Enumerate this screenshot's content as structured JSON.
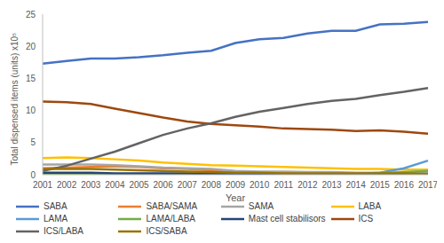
{
  "chart_data": {
    "type": "line",
    "x_label": "Year",
    "y_label": "Total dispensed items (units) x10⁵",
    "categories": [
      "2001",
      "2002",
      "2003",
      "2004",
      "2005",
      "2006",
      "2007",
      "2008",
      "2009",
      "2010",
      "2011",
      "2012",
      "2013",
      "2014",
      "2015",
      "2016",
      "2017"
    ],
    "ylim": [
      0,
      25
    ],
    "yticks": [
      0,
      5,
      10,
      15,
      20,
      25
    ],
    "grid": false,
    "legend": "bottom",
    "series": [
      {
        "name": "SABA",
        "color": "#4472c4",
        "values": [
          17.3,
          17.7,
          18.1,
          18.1,
          18.3,
          18.6,
          19.0,
          19.3,
          20.5,
          21.1,
          21.3,
          22.0,
          22.4,
          22.4,
          23.4,
          23.5,
          23.8
        ]
      },
      {
        "name": "SABA/SAMA",
        "color": "#ed7d31",
        "values": [
          1.0,
          1.1,
          1.2,
          1.3,
          1.2,
          1.0,
          0.9,
          0.7,
          0.4,
          0.3,
          0.3,
          0.3,
          0.2,
          0.2,
          0.2,
          0.2,
          0.2
        ]
      },
      {
        "name": "SAMA",
        "color": "#a5a5a5",
        "values": [
          1.6,
          1.6,
          1.6,
          1.5,
          1.3,
          1.1,
          1.0,
          0.9,
          0.6,
          0.5,
          0.5,
          0.4,
          0.4,
          0.3,
          0.3,
          0.3,
          0.3
        ]
      },
      {
        "name": "LABA",
        "color": "#ffc000",
        "values": [
          2.6,
          2.7,
          2.6,
          2.4,
          2.2,
          1.9,
          1.7,
          1.5,
          1.4,
          1.3,
          1.2,
          1.1,
          1.0,
          0.9,
          0.9,
          0.8,
          0.8
        ]
      },
      {
        "name": "LAMA",
        "color": "#5b9bd5",
        "values": [
          0.1,
          0.1,
          0.1,
          0.1,
          0.1,
          0.1,
          0.1,
          0.1,
          0.1,
          0.1,
          0.1,
          0.1,
          0.1,
          0.1,
          0.3,
          1.0,
          2.2
        ]
      },
      {
        "name": "LAMA/LABA",
        "color": "#70ad47",
        "values": [
          0,
          0,
          0,
          0,
          0,
          0,
          0,
          0,
          0,
          0,
          0,
          0,
          0,
          0,
          0.2,
          0.4,
          0.6
        ]
      },
      {
        "name": "Mast cell stabilisors",
        "color": "#264478",
        "values": [
          0.3,
          0.3,
          0.3,
          0.2,
          0.2,
          0.2,
          0.2,
          0.1,
          0.1,
          0.1,
          0.1,
          0.1,
          0.1,
          0.1,
          0.1,
          0.1,
          0.1
        ]
      },
      {
        "name": "ICS",
        "color": "#9e480e",
        "values": [
          11.4,
          11.3,
          11.0,
          10.3,
          9.6,
          8.9,
          8.3,
          7.9,
          7.7,
          7.5,
          7.2,
          7.1,
          7.0,
          6.8,
          6.9,
          6.7,
          6.4
        ]
      },
      {
        "name": "ICS/LABA",
        "color": "#636363",
        "values": [
          0.6,
          1.4,
          2.5,
          3.6,
          4.9,
          6.2,
          7.2,
          8.0,
          9.0,
          9.8,
          10.4,
          11.0,
          11.5,
          11.8,
          12.4,
          12.9,
          13.5
        ]
      },
      {
        "name": "ICS/SABA",
        "color": "#997300",
        "values": [
          0.9,
          0.9,
          0.9,
          0.8,
          0.7,
          0.6,
          0.5,
          0.4,
          0.3,
          0.3,
          0.2,
          0.2,
          0.2,
          0.2,
          0.2,
          0.2,
          0.1
        ]
      }
    ]
  }
}
